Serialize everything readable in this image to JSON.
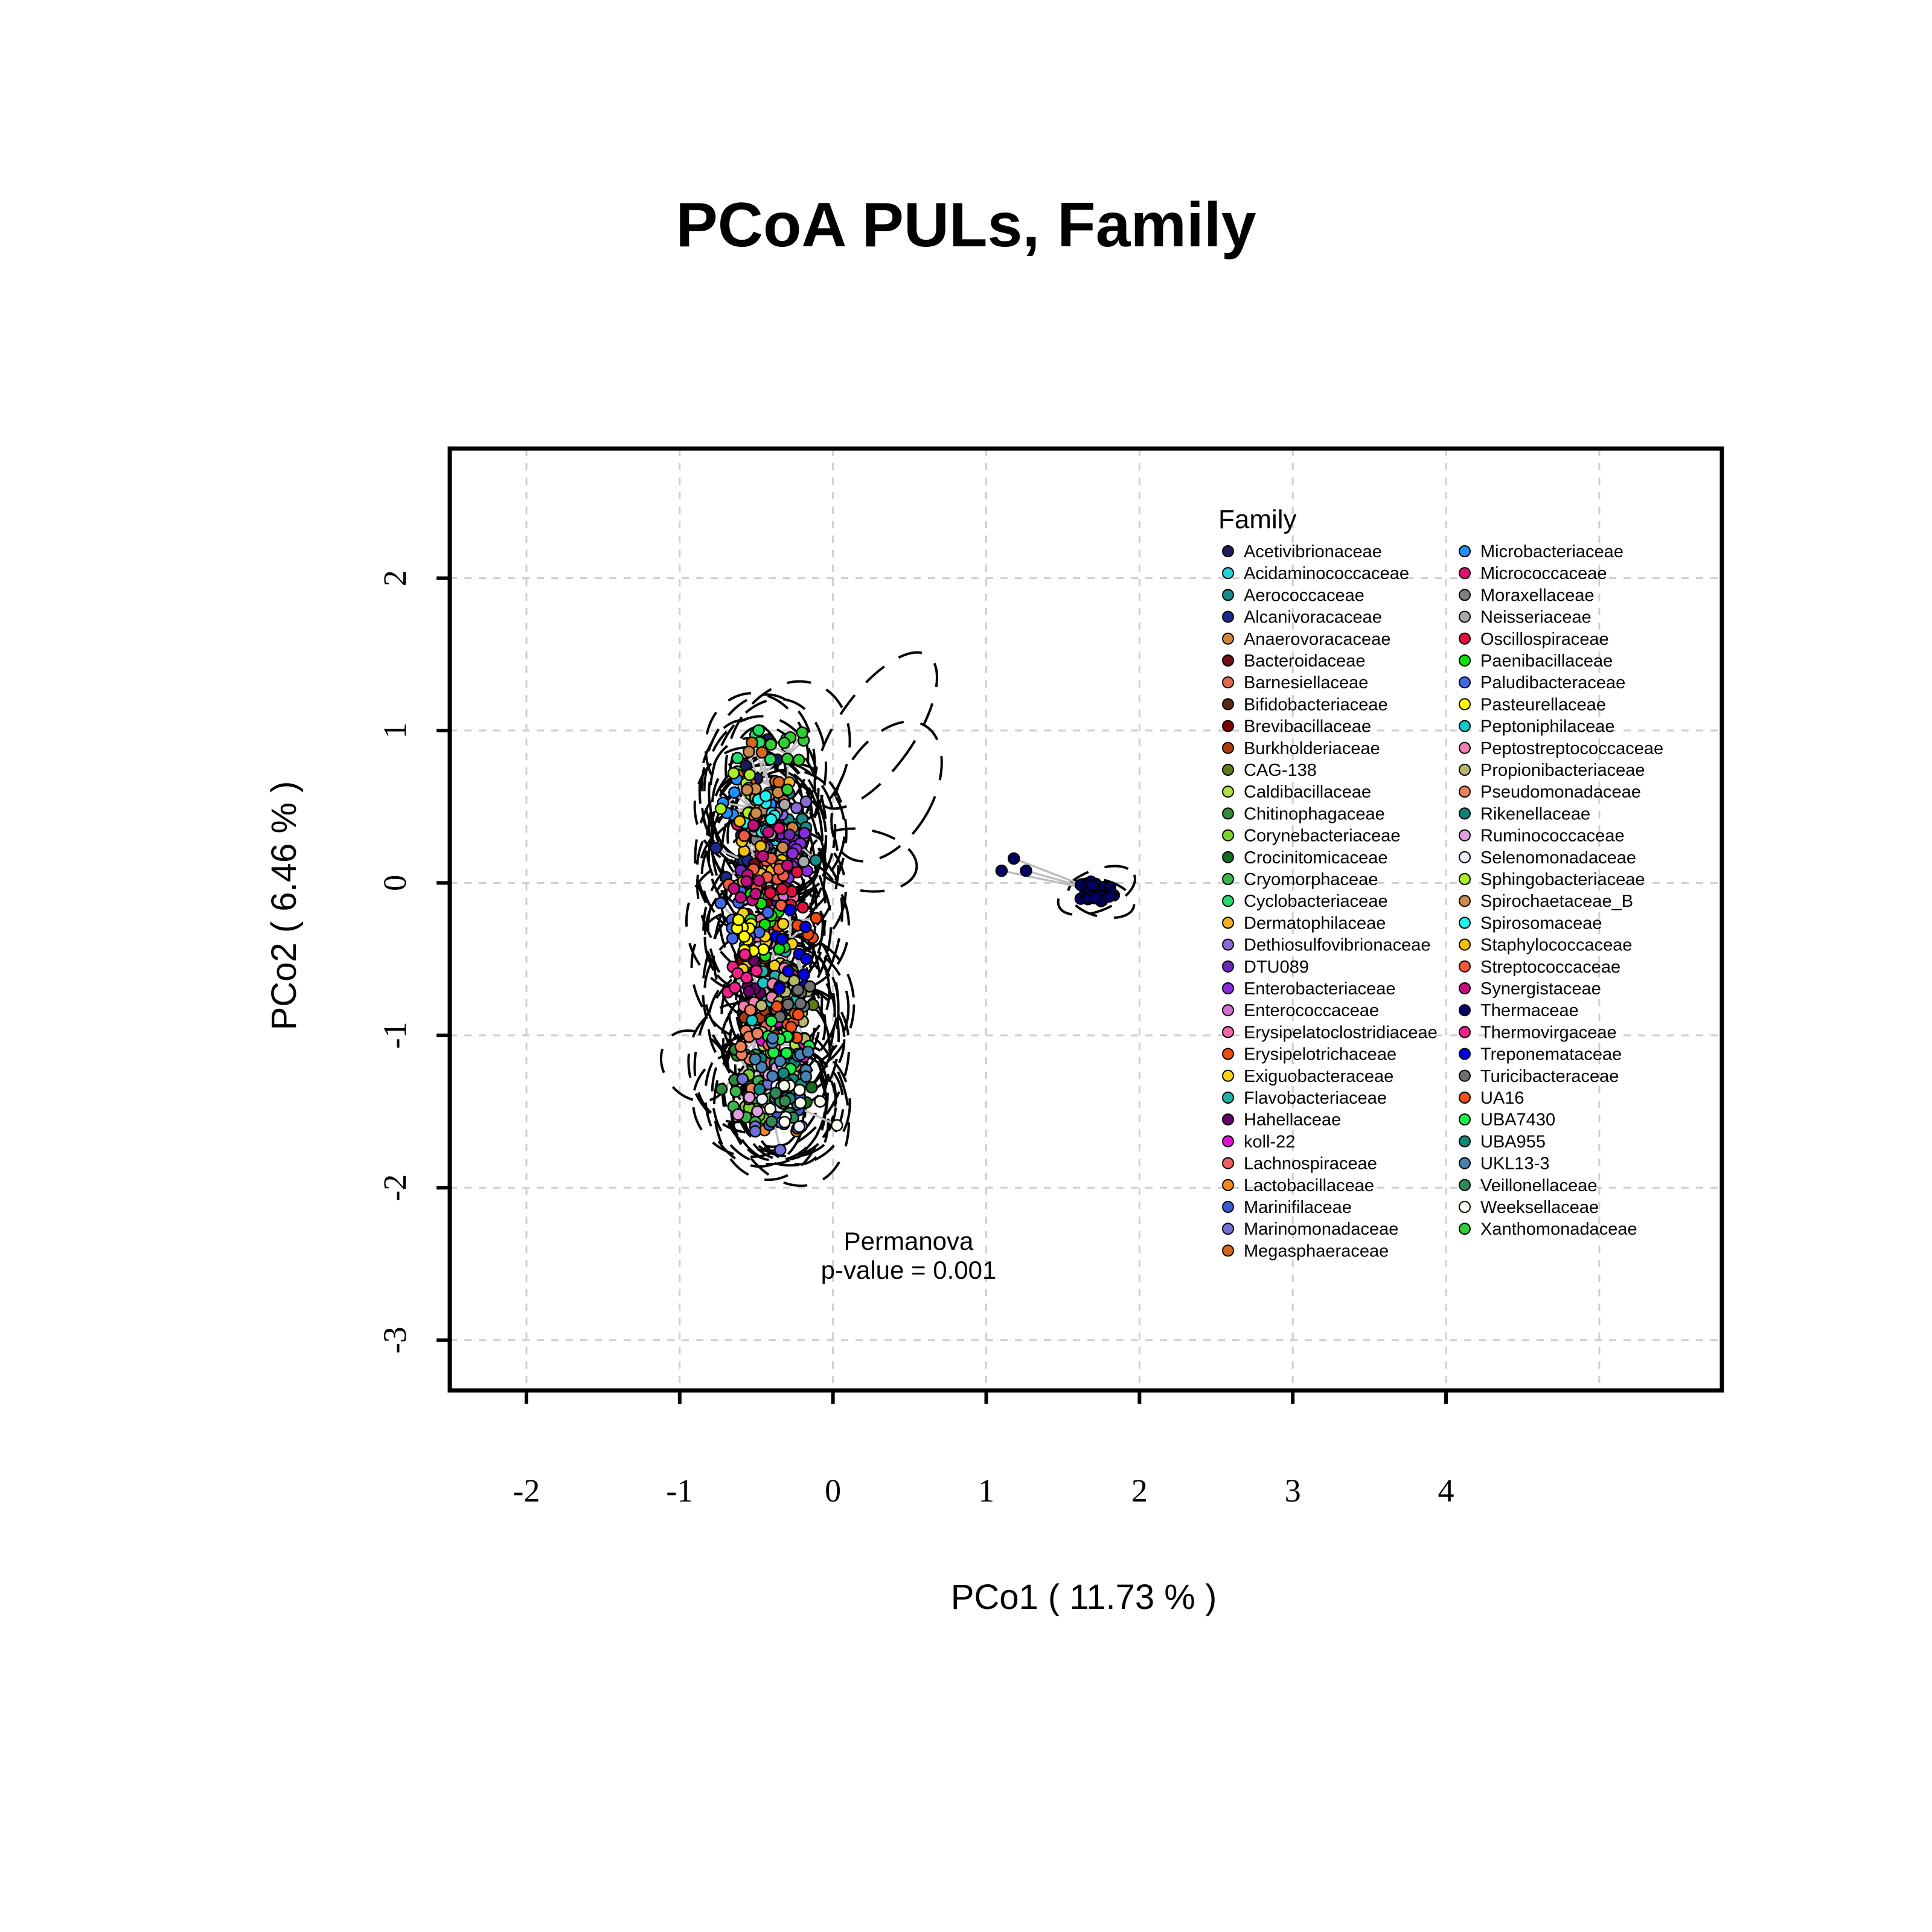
{
  "chart_data": {
    "type": "scatter",
    "title": "PCoA PULs, Family",
    "xlabel": "PCo1 ( 11.73 % )",
    "ylabel": "PCo2 ( 6.46 % )",
    "xlim": [
      -2.5,
      5.8
    ],
    "ylim": [
      -3.33,
      2.85
    ],
    "x_ticks": [
      -2,
      -1,
      0,
      1,
      2,
      3,
      4
    ],
    "y_ticks": [
      -3,
      -2,
      -1,
      0,
      1,
      2
    ],
    "grid": true,
    "legend_title": "Family",
    "legend_position": "top-right",
    "annotation": [
      "Permanova",
      "p-value = 0.001"
    ],
    "series": [
      {
        "name": "Acetivibrionaceae",
        "color": "#1b1b5e"
      },
      {
        "name": "Acidaminococcaceae",
        "color": "#22d0d8"
      },
      {
        "name": "Aerococcaceae",
        "color": "#188a8a"
      },
      {
        "name": "Alcanivoracaceae",
        "color": "#1c2a8a"
      },
      {
        "name": "Anaerovoracaceae",
        "color": "#cd853f"
      },
      {
        "name": "Bacteroidaceae",
        "color": "#6e0f1a"
      },
      {
        "name": "Barnesiellaceae",
        "color": "#e06a50"
      },
      {
        "name": "Bifidobacteriaceae",
        "color": "#5a2a10"
      },
      {
        "name": "Brevibacillaceae",
        "color": "#800000"
      },
      {
        "name": "Burkholderiaceae",
        "color": "#b03a10"
      },
      {
        "name": "CAG-138",
        "color": "#5e7a1a"
      },
      {
        "name": "Caldibacillaceae",
        "color": "#b0e040"
      },
      {
        "name": "Chitinophagaceae",
        "color": "#2e8b3a"
      },
      {
        "name": "Corynebacteriaceae",
        "color": "#7cd22a"
      },
      {
        "name": "Crocinitomicaceae",
        "color": "#106e1e"
      },
      {
        "name": "Cryomorphaceae",
        "color": "#3cb44b"
      },
      {
        "name": "Cyclobacteriaceae",
        "color": "#22dd66"
      },
      {
        "name": "Dermatophilaceae",
        "color": "#f0b020"
      },
      {
        "name": "Dethiosulfovibrionaceae",
        "color": "#8a6ad6"
      },
      {
        "name": "DTU089",
        "color": "#6a28b4"
      },
      {
        "name": "Enterobacteriaceae",
        "color": "#8a2be2"
      },
      {
        "name": "Enterococcaceae",
        "color": "#d070d0"
      },
      {
        "name": "Erysipelatoclostridiaceae",
        "color": "#f06aa8"
      },
      {
        "name": "Erysipelotrichaceae",
        "color": "#f04a10"
      },
      {
        "name": "Exiguobacteraceae",
        "color": "#f8d018"
      },
      {
        "name": "Flavobacteriaceae",
        "color": "#20b2aa"
      },
      {
        "name": "Hahellaceae",
        "color": "#660066"
      },
      {
        "name": "koll-22",
        "color": "#e010d0"
      },
      {
        "name": "Lachnospiraceae",
        "color": "#f06060"
      },
      {
        "name": "Lactobacillaceae",
        "color": "#f08a20"
      },
      {
        "name": "Marinifilaceae",
        "color": "#3a5ad0"
      },
      {
        "name": "Marinomonadaceae",
        "color": "#7070d8"
      },
      {
        "name": "Megasphaeraceae",
        "color": "#d2691e"
      },
      {
        "name": "Microbacteriaceae",
        "color": "#1e90ff"
      },
      {
        "name": "Micrococcaceae",
        "color": "#e0106e"
      },
      {
        "name": "Moraxellaceae",
        "color": "#808080"
      },
      {
        "name": "Neisseriaceae",
        "color": "#a9a9a9"
      },
      {
        "name": "Oscillospiraceae",
        "color": "#dc143c"
      },
      {
        "name": "Paenibacillaceae",
        "color": "#10e010"
      },
      {
        "name": "Paludibacteraceae",
        "color": "#4169e1"
      },
      {
        "name": "Pasteurellaceae",
        "color": "#ffff00"
      },
      {
        "name": "Peptoniphilaceae",
        "color": "#10c8c8"
      },
      {
        "name": "Peptostreptococcaceae",
        "color": "#f080b0"
      },
      {
        "name": "Propionibacteriaceae",
        "color": "#b8b86a"
      },
      {
        "name": "Pseudomonadaceae",
        "color": "#f0805a"
      },
      {
        "name": "Rikenellaceae",
        "color": "#10807a"
      },
      {
        "name": "Ruminococcaceae",
        "color": "#e0a0e0"
      },
      {
        "name": "Selenomonadaceae",
        "color": "#f0f0ff"
      },
      {
        "name": "Sphingobacteriaceae",
        "color": "#a8f020"
      },
      {
        "name": "Spirochaetaceae_B",
        "color": "#cd8a4a"
      },
      {
        "name": "Spirosomaceae",
        "color": "#20f0f0"
      },
      {
        "name": "Staphylococcaceae",
        "color": "#f0c010"
      },
      {
        "name": "Streptococcaceae",
        "color": "#f05a40"
      },
      {
        "name": "Synergistaceae",
        "color": "#c01080"
      },
      {
        "name": "Thermaceae",
        "color": "#000066"
      },
      {
        "name": "Thermovirgaceae",
        "color": "#f0208a"
      },
      {
        "name": "Treponemataceae",
        "color": "#0000e0"
      },
      {
        "name": "Turicibacteraceae",
        "color": "#707070"
      },
      {
        "name": "UA16",
        "color": "#f0501a"
      },
      {
        "name": "UBA7430",
        "color": "#18f040"
      },
      {
        "name": "UBA955",
        "color": "#108a7a"
      },
      {
        "name": "UKL13-3",
        "color": "#4682b4"
      },
      {
        "name": "Veillonellaceae",
        "color": "#2e8b57"
      },
      {
        "name": "Weeksellaceae",
        "color": "#fffff0"
      },
      {
        "name": "Xanthomonadaceae",
        "color": "#32cd32"
      }
    ]
  }
}
